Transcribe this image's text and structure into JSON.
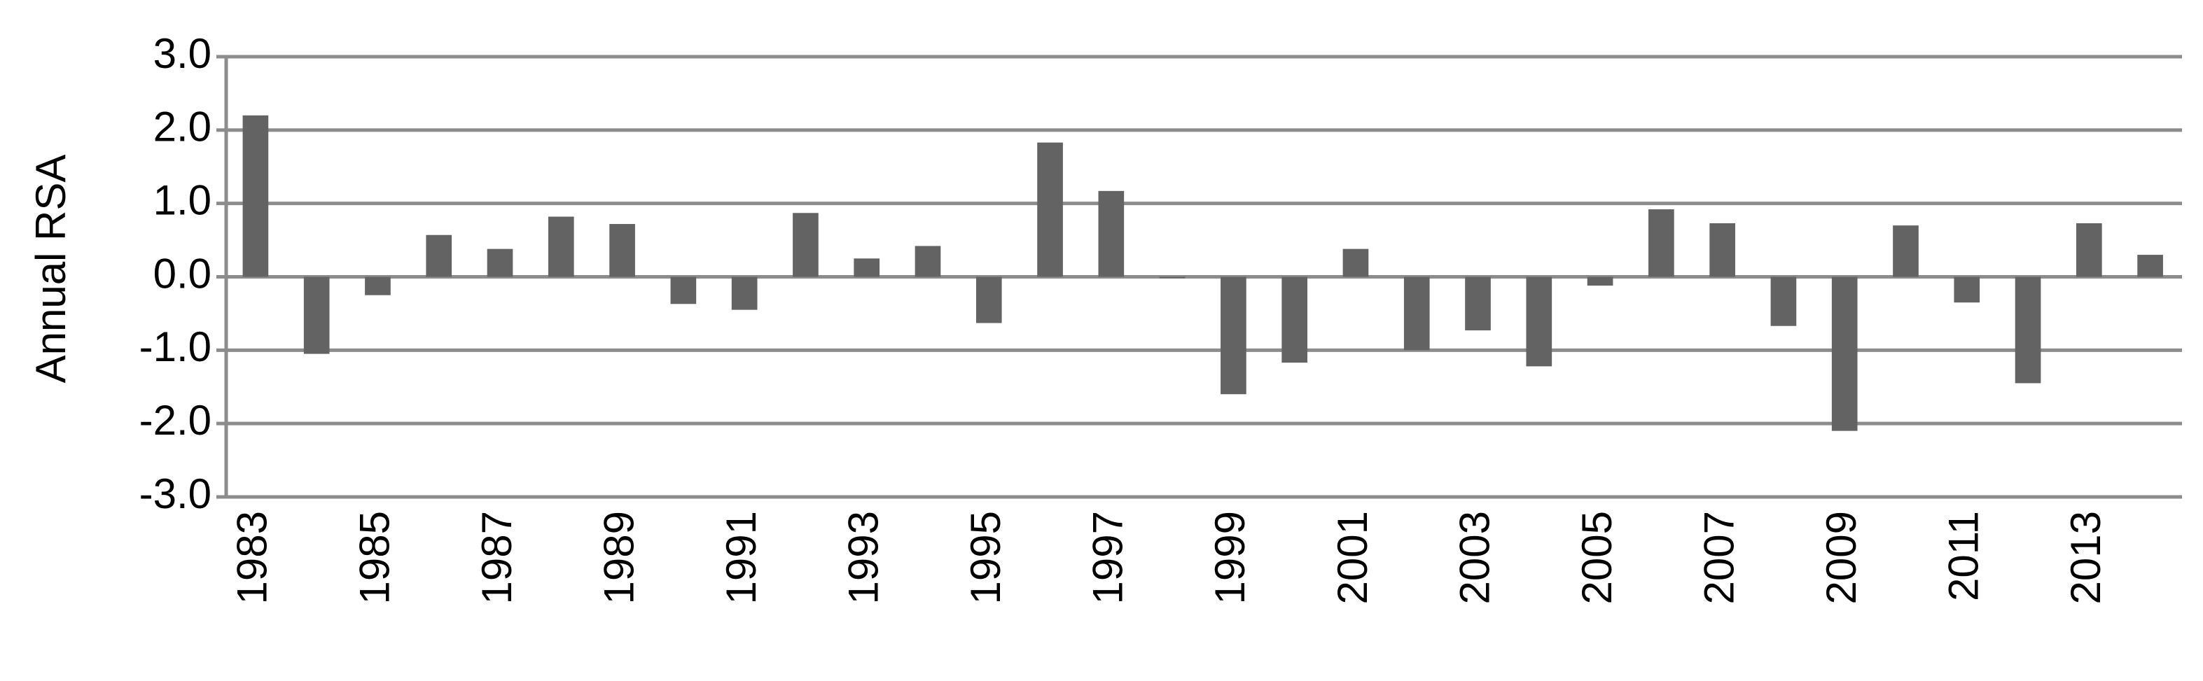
{
  "chart_data": {
    "type": "bar",
    "y_label": "Annual RSA",
    "categories": [
      "1983",
      null,
      "1985",
      null,
      "1987",
      null,
      "1989",
      null,
      "1991",
      null,
      "1993",
      null,
      "1995",
      null,
      "1997",
      null,
      "1999",
      null,
      "2001",
      null,
      "2003",
      null,
      "2005",
      null,
      "2007",
      null,
      "2009",
      null,
      "2011",
      null,
      "2013",
      null
    ],
    "values": [
      2.2,
      -1.05,
      -0.25,
      0.57,
      0.38,
      0.82,
      0.72,
      -0.37,
      -0.45,
      0.87,
      0.25,
      0.42,
      -0.63,
      1.83,
      1.17,
      -0.02,
      -1.6,
      -1.17,
      0.38,
      -1.0,
      -0.73,
      -1.22,
      -0.12,
      0.92,
      0.73,
      -0.67,
      -2.1,
      0.7,
      -0.35,
      -1.45,
      0.73,
      0.3
    ],
    "color": "#636363",
    "ylim": [
      -3,
      3
    ],
    "yticks": [
      {
        "value": -3,
        "label": "-3.0"
      },
      {
        "value": -2,
        "label": "-2.0"
      },
      {
        "value": -1,
        "label": "-1.0"
      },
      {
        "value": 0,
        "label": "0.0"
      },
      {
        "value": 1,
        "label": "1.0"
      },
      {
        "value": 2,
        "label": "2.0"
      },
      {
        "value": 3,
        "label": "3.0"
      }
    ],
    "grid": true
  }
}
